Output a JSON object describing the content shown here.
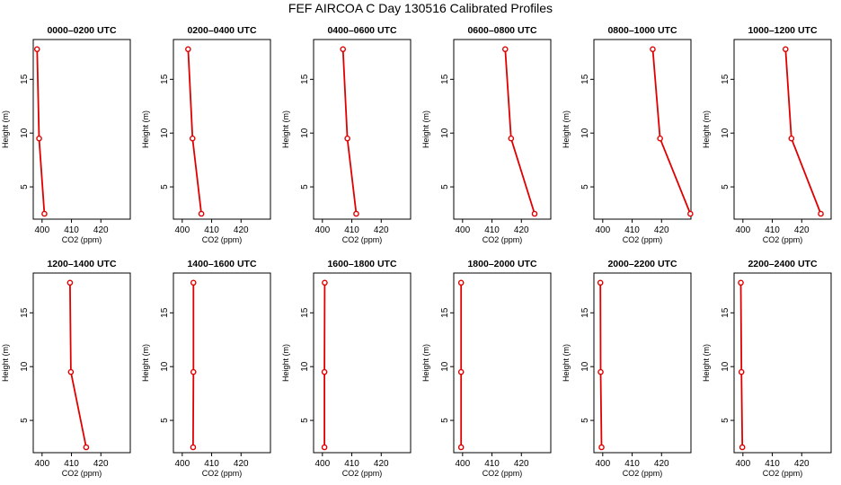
{
  "figure": {
    "title": "FEF AIRCOA C  Day 130516  Calibrated Profiles"
  },
  "style": {
    "series_color": "#e00000"
  },
  "chart_data": [
    {
      "type": "line",
      "title": "0000–0200 UTC",
      "xlabel": "CO2 (ppm)",
      "ylabel": "Height (m)",
      "xlim": [
        397,
        430
      ],
      "ylim": [
        2,
        18.7
      ],
      "xticks": [
        400,
        410,
        420
      ],
      "yticks": [
        5,
        10,
        15
      ],
      "series": [
        {
          "x": [
            398.3,
            399.0,
            400.8
          ],
          "y": [
            17.8,
            9.5,
            2.5
          ]
        }
      ]
    },
    {
      "type": "line",
      "title": "0200–0400 UTC",
      "xlabel": "CO2 (ppm)",
      "ylabel": "Height (m)",
      "xlim": [
        397,
        430
      ],
      "ylim": [
        2,
        18.7
      ],
      "xticks": [
        400,
        410,
        420
      ],
      "yticks": [
        5,
        10,
        15
      ],
      "series": [
        {
          "x": [
            402.0,
            403.5,
            406.5
          ],
          "y": [
            17.8,
            9.5,
            2.5
          ]
        }
      ]
    },
    {
      "type": "line",
      "title": "0400–0600 UTC",
      "xlabel": "CO2 (ppm)",
      "ylabel": "Height (m)",
      "xlim": [
        397,
        430
      ],
      "ylim": [
        2,
        18.7
      ],
      "xticks": [
        400,
        410,
        420
      ],
      "yticks": [
        5,
        10,
        15
      ],
      "series": [
        {
          "x": [
            407.0,
            408.5,
            411.5
          ],
          "y": [
            17.8,
            9.5,
            2.5
          ]
        }
      ]
    },
    {
      "type": "line",
      "title": "0600–0800 UTC",
      "xlabel": "CO2 (ppm)",
      "ylabel": "Height (m)",
      "xlim": [
        397,
        430
      ],
      "ylim": [
        2,
        18.7
      ],
      "xticks": [
        400,
        410,
        420
      ],
      "yticks": [
        5,
        10,
        15
      ],
      "series": [
        {
          "x": [
            414.5,
            416.5,
            424.5
          ],
          "y": [
            17.8,
            9.5,
            2.5
          ]
        }
      ]
    },
    {
      "type": "line",
      "title": "0800–1000 UTC",
      "xlabel": "CO2 (ppm)",
      "ylabel": "Height (m)",
      "xlim": [
        397,
        430
      ],
      "ylim": [
        2,
        18.7
      ],
      "xticks": [
        400,
        410,
        420
      ],
      "yticks": [
        5,
        10,
        15
      ],
      "series": [
        {
          "x": [
            417.0,
            419.5,
            429.8
          ],
          "y": [
            17.8,
            9.5,
            2.5
          ]
        }
      ]
    },
    {
      "type": "line",
      "title": "1000–1200 UTC",
      "xlabel": "CO2 (ppm)",
      "ylabel": "Height (m)",
      "xlim": [
        397,
        430
      ],
      "ylim": [
        2,
        18.7
      ],
      "xticks": [
        400,
        410,
        420
      ],
      "yticks": [
        5,
        10,
        15
      ],
      "series": [
        {
          "x": [
            414.5,
            416.5,
            426.5
          ],
          "y": [
            17.8,
            9.5,
            2.5
          ]
        }
      ]
    },
    {
      "type": "line",
      "title": "1200–1400 UTC",
      "xlabel": "CO2 (ppm)",
      "ylabel": "Height (m)",
      "xlim": [
        397,
        430
      ],
      "ylim": [
        2,
        18.7
      ],
      "xticks": [
        400,
        410,
        420
      ],
      "yticks": [
        5,
        10,
        15
      ],
      "series": [
        {
          "x": [
            409.5,
            409.8,
            415.0
          ],
          "y": [
            17.8,
            9.5,
            2.5
          ]
        }
      ]
    },
    {
      "type": "line",
      "title": "1400–1600 UTC",
      "xlabel": "CO2 (ppm)",
      "ylabel": "Height (m)",
      "xlim": [
        397,
        430
      ],
      "ylim": [
        2,
        18.7
      ],
      "xticks": [
        400,
        410,
        420
      ],
      "yticks": [
        5,
        10,
        15
      ],
      "series": [
        {
          "x": [
            403.8,
            403.8,
            403.7
          ],
          "y": [
            17.8,
            9.5,
            2.5
          ]
        }
      ]
    },
    {
      "type": "line",
      "title": "1600–1800 UTC",
      "xlabel": "CO2 (ppm)",
      "ylabel": "Height (m)",
      "xlim": [
        397,
        430
      ],
      "ylim": [
        2,
        18.7
      ],
      "xticks": [
        400,
        410,
        420
      ],
      "yticks": [
        5,
        10,
        15
      ],
      "series": [
        {
          "x": [
            400.8,
            400.7,
            400.7
          ],
          "y": [
            17.8,
            9.5,
            2.5
          ]
        }
      ]
    },
    {
      "type": "line",
      "title": "1800–2000 UTC",
      "xlabel": "CO2 (ppm)",
      "ylabel": "Height (m)",
      "xlim": [
        397,
        430
      ],
      "ylim": [
        2,
        18.7
      ],
      "xticks": [
        400,
        410,
        420
      ],
      "yticks": [
        5,
        10,
        15
      ],
      "series": [
        {
          "x": [
            399.5,
            399.5,
            399.5
          ],
          "y": [
            17.8,
            9.5,
            2.5
          ]
        }
      ]
    },
    {
      "type": "line",
      "title": "2000–2200 UTC",
      "xlabel": "CO2 (ppm)",
      "ylabel": "Height (m)",
      "xlim": [
        397,
        430
      ],
      "ylim": [
        2,
        18.7
      ],
      "xticks": [
        400,
        410,
        420
      ],
      "yticks": [
        5,
        10,
        15
      ],
      "series": [
        {
          "x": [
            399.2,
            399.3,
            399.6
          ],
          "y": [
            17.8,
            9.5,
            2.5
          ]
        }
      ]
    },
    {
      "type": "line",
      "title": "2200–2400 UTC",
      "xlabel": "CO2 (ppm)",
      "ylabel": "Height (m)",
      "xlim": [
        397,
        430
      ],
      "ylim": [
        2,
        18.7
      ],
      "xticks": [
        400,
        410,
        420
      ],
      "yticks": [
        5,
        10,
        15
      ],
      "series": [
        {
          "x": [
            399.3,
            399.5,
            399.8
          ],
          "y": [
            17.8,
            9.5,
            2.5
          ]
        }
      ]
    }
  ]
}
